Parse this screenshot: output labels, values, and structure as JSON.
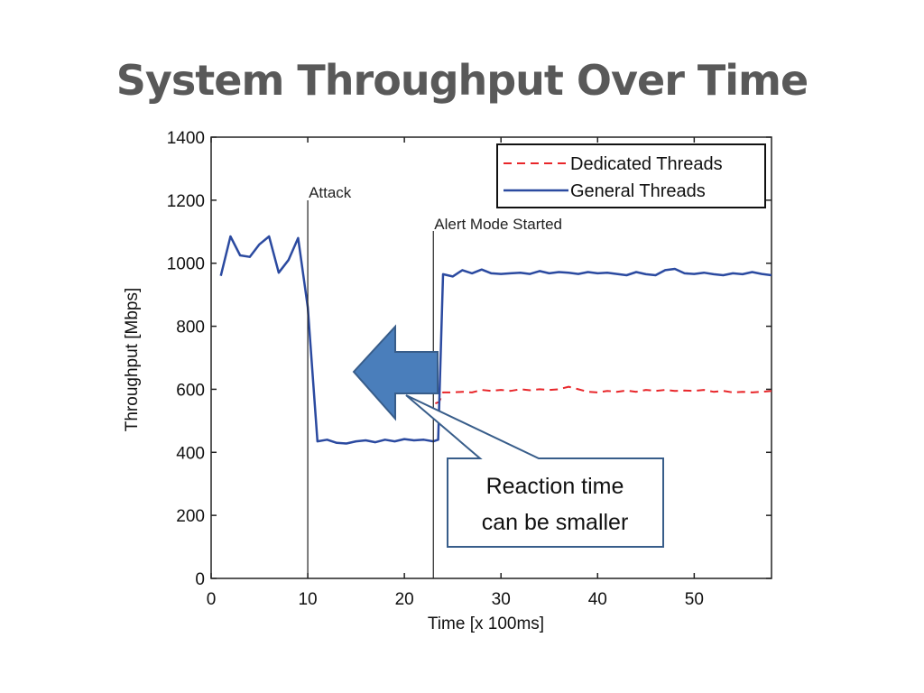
{
  "slide": {
    "title": "System Throughput Over Time"
  },
  "callout": {
    "line1": "Reaction time",
    "line2": "can be smaller"
  },
  "chart_data": {
    "type": "line",
    "title": "",
    "xlabel": "Time [x 100ms]",
    "ylabel": "Throughput [Mbps]",
    "xlim": [
      0,
      58
    ],
    "ylim": [
      0,
      1400
    ],
    "xticks": [
      0,
      10,
      20,
      30,
      40,
      50
    ],
    "yticks": [
      0,
      200,
      400,
      600,
      800,
      1000,
      1200,
      1400
    ],
    "grid": false,
    "legend_position": "top-right",
    "annotations": [
      {
        "text": "Attack",
        "x": 10
      },
      {
        "text": "Alert Mode Started",
        "x": 23
      }
    ],
    "series": [
      {
        "name": "Dedicated Threads",
        "color": "#e8262a",
        "style": "dashed",
        "x": [
          23.2,
          23.6,
          24,
          25,
          26,
          27,
          28,
          29,
          30,
          31,
          32,
          33,
          34,
          35,
          36,
          37,
          38,
          39,
          40,
          41,
          42,
          43,
          44,
          45,
          46,
          47,
          48,
          49,
          50,
          51,
          52,
          53,
          54,
          55,
          56,
          57,
          58
        ],
        "y": [
          555,
          560,
          590,
          590,
          592,
          590,
          598,
          595,
          598,
          595,
          600,
          597,
          600,
          598,
          600,
          608,
          600,
          592,
          590,
          595,
          592,
          596,
          592,
          598,
          595,
          598,
          595,
          596,
          595,
          598,
          592,
          595,
          590,
          592,
          590,
          592,
          595
        ]
      },
      {
        "name": "General Threads",
        "color": "#2b4aa0",
        "style": "solid",
        "x": [
          1,
          2,
          3,
          4,
          5,
          6,
          7,
          8,
          9,
          10,
          11,
          12,
          13,
          14,
          15,
          16,
          17,
          18,
          19,
          20,
          21,
          22,
          23,
          23.5,
          24,
          25,
          26,
          27,
          28,
          29,
          30,
          31,
          32,
          33,
          34,
          35,
          36,
          37,
          38,
          39,
          40,
          41,
          42,
          43,
          44,
          45,
          46,
          47,
          48,
          49,
          50,
          51,
          52,
          53,
          54,
          55,
          56,
          57,
          58
        ],
        "y": [
          960,
          1085,
          1025,
          1020,
          1060,
          1085,
          970,
          1010,
          1080,
          860,
          435,
          440,
          430,
          428,
          435,
          438,
          432,
          440,
          435,
          442,
          438,
          440,
          435,
          440,
          965,
          958,
          978,
          968,
          980,
          968,
          966,
          968,
          970,
          966,
          975,
          968,
          972,
          970,
          966,
          972,
          968,
          970,
          966,
          962,
          972,
          965,
          962,
          978,
          982,
          968,
          966,
          970,
          965,
          962,
          968,
          965,
          972,
          966,
          962
        ]
      }
    ]
  }
}
